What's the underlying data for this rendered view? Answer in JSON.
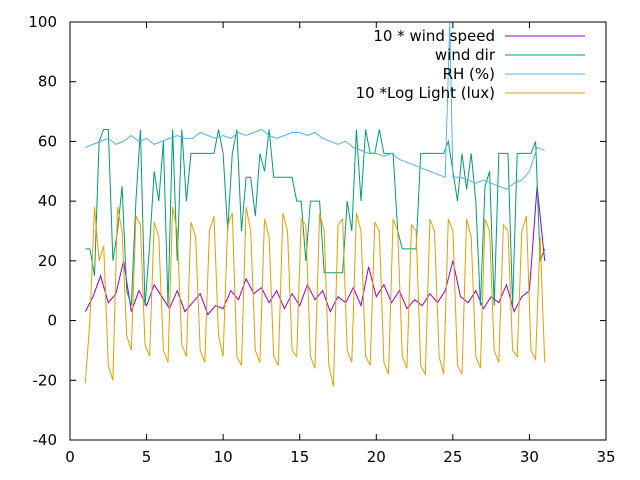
{
  "chart_data": {
    "type": "line",
    "xlim": [
      0,
      35
    ],
    "ylim": [
      -40,
      100
    ],
    "x_ticks": [
      "0",
      "5",
      "10",
      "15",
      "20",
      "25",
      "30",
      "35"
    ],
    "y_ticks": [
      "-40",
      "-20",
      "0",
      "20",
      "40",
      "60",
      "80",
      "100"
    ],
    "grid": false,
    "legend_position": "top-right",
    "series": [
      {
        "name": "10 * wind speed",
        "color": "#9400d3",
        "x": [
          1.0,
          1.5,
          2.0,
          2.5,
          3.0,
          3.5,
          4.0,
          4.5,
          5.0,
          5.5,
          6.0,
          6.5,
          7.0,
          7.5,
          8.0,
          8.5,
          9.0,
          9.5,
          10.0,
          10.5,
          11.0,
          11.5,
          12.0,
          12.5,
          13.0,
          13.5,
          14.0,
          14.5,
          15.0,
          15.5,
          16.0,
          16.5,
          17.0,
          17.5,
          18.0,
          18.5,
          19.0,
          19.5,
          20.0,
          20.5,
          21.0,
          21.5,
          22.0,
          22.5,
          23.0,
          23.5,
          24.0,
          24.5,
          25.0,
          25.5,
          26.0,
          26.5,
          27.0,
          27.5,
          28.0,
          28.5,
          29.0,
          29.5,
          30.0,
          30.5,
          31.0
        ],
        "y": [
          3,
          8,
          15,
          6,
          9,
          20,
          3,
          10,
          5,
          12,
          8,
          4,
          10,
          3,
          6,
          9,
          2,
          5,
          4,
          10,
          7,
          14,
          9,
          11,
          6,
          10,
          4,
          9,
          5,
          12,
          7,
          10,
          3,
          8,
          6,
          11,
          5,
          18,
          8,
          12,
          6,
          10,
          4,
          7,
          5,
          9,
          6,
          10,
          20,
          8,
          6,
          10,
          4,
          8,
          6,
          12,
          3,
          8,
          10,
          45,
          20
        ]
      },
      {
        "name": "wind dir",
        "color": "#009e73",
        "x": [
          1.0,
          1.3,
          1.6,
          1.9,
          2.2,
          2.5,
          2.8,
          3.1,
          3.4,
          3.7,
          4.0,
          4.3,
          4.6,
          4.9,
          5.2,
          5.5,
          5.8,
          6.1,
          6.4,
          6.7,
          7.0,
          7.3,
          7.6,
          7.9,
          8.2,
          8.5,
          8.8,
          9.1,
          9.4,
          9.7,
          10.0,
          10.3,
          10.6,
          10.9,
          11.2,
          11.5,
          11.8,
          12.1,
          12.4,
          12.7,
          13.0,
          13.3,
          13.6,
          13.9,
          14.2,
          14.5,
          14.8,
          15.1,
          15.4,
          15.7,
          16.0,
          16.3,
          16.6,
          16.9,
          17.2,
          17.5,
          17.8,
          18.1,
          18.4,
          18.7,
          19.0,
          19.3,
          19.6,
          19.9,
          20.2,
          20.5,
          20.8,
          21.1,
          21.4,
          21.7,
          22.0,
          22.3,
          22.6,
          22.9,
          23.2,
          23.5,
          23.8,
          24.1,
          24.4,
          24.7,
          25.0,
          25.3,
          25.6,
          25.9,
          26.2,
          26.5,
          26.8,
          27.1,
          27.4,
          27.7,
          28.0,
          28.3,
          28.6,
          28.9,
          29.2,
          29.5,
          29.8,
          30.1,
          30.4,
          30.7,
          31.0
        ],
        "y": [
          24,
          24,
          15,
          60,
          64,
          64,
          20,
          30,
          45,
          10,
          5,
          40,
          64,
          5,
          25,
          50,
          40,
          60,
          5,
          64,
          20,
          64,
          40,
          56,
          56,
          56,
          56,
          56,
          56,
          64,
          56,
          30,
          56,
          64,
          30,
          48,
          48,
          35,
          56,
          50,
          64,
          48,
          48,
          48,
          48,
          48,
          40,
          40,
          20,
          40,
          40,
          40,
          16,
          16,
          16,
          16,
          16,
          40,
          30,
          64,
          40,
          64,
          56,
          56,
          64,
          56,
          56,
          56,
          30,
          24,
          24,
          24,
          24,
          56,
          56,
          56,
          56,
          56,
          56,
          60,
          50,
          40,
          56,
          44,
          56,
          40,
          5,
          45,
          50,
          5,
          56,
          56,
          56,
          5,
          56,
          56,
          56,
          56,
          60,
          20,
          24
        ]
      },
      {
        "name": "RH (%)",
        "color": "#56b4e9",
        "x": [
          1.0,
          1.5,
          2.0,
          2.5,
          3.0,
          3.5,
          4.0,
          4.5,
          5.0,
          5.5,
          6.0,
          6.5,
          7.0,
          7.5,
          8.0,
          8.5,
          9.0,
          9.5,
          10.0,
          10.5,
          11.0,
          11.5,
          12.0,
          12.5,
          13.0,
          13.5,
          14.0,
          14.5,
          15.0,
          15.5,
          16.0,
          16.5,
          17.0,
          17.5,
          18.0,
          18.5,
          19.0,
          19.5,
          20.0,
          20.5,
          21.0,
          21.5,
          22.0,
          22.5,
          23.0,
          23.5,
          24.0,
          24.5,
          24.8,
          25.0,
          25.5,
          26.0,
          26.5,
          27.0,
          27.5,
          28.0,
          28.5,
          29.0,
          29.5,
          30.0,
          30.5,
          31.0
        ],
        "y": [
          58,
          59,
          60,
          61,
          59,
          60,
          62,
          60,
          61,
          59,
          60,
          61,
          62,
          61,
          61,
          63,
          62,
          61,
          62,
          61,
          63,
          62,
          63,
          64,
          62,
          61,
          62,
          63,
          63,
          62,
          63,
          61,
          60,
          59,
          60,
          58,
          57,
          56,
          56,
          55,
          56,
          54,
          53,
          52,
          51,
          50,
          49,
          48,
          100,
          48,
          48,
          47,
          46,
          47,
          46,
          45,
          44,
          46,
          47,
          50,
          58,
          57
        ]
      },
      {
        "name": "10 *Log Light (lux)",
        "color": "#e69f00",
        "x": [
          1.0,
          1.3,
          1.6,
          1.9,
          2.2,
          2.5,
          2.8,
          3.1,
          3.4,
          3.7,
          4.0,
          4.3,
          4.6,
          4.9,
          5.2,
          5.5,
          5.8,
          6.1,
          6.4,
          6.7,
          7.0,
          7.3,
          7.6,
          7.9,
          8.2,
          8.5,
          8.8,
          9.1,
          9.4,
          9.7,
          10.0,
          10.3,
          10.6,
          10.9,
          11.2,
          11.5,
          11.8,
          12.1,
          12.4,
          12.7,
          13.0,
          13.3,
          13.6,
          13.9,
          14.2,
          14.5,
          14.8,
          15.1,
          15.4,
          15.7,
          16.0,
          16.3,
          16.6,
          16.9,
          17.2,
          17.5,
          17.8,
          18.1,
          18.4,
          18.7,
          19.0,
          19.3,
          19.6,
          19.9,
          20.2,
          20.5,
          20.8,
          21.1,
          21.4,
          21.7,
          22.0,
          22.3,
          22.6,
          22.9,
          23.2,
          23.5,
          23.8,
          24.1,
          24.4,
          24.7,
          25.0,
          25.3,
          25.6,
          25.9,
          26.2,
          26.5,
          26.8,
          27.1,
          27.4,
          27.7,
          28.0,
          28.3,
          28.6,
          28.9,
          29.2,
          29.5,
          29.8,
          30.1,
          30.4,
          30.7,
          31.0
        ],
        "y": [
          -21,
          0,
          38,
          20,
          25,
          -15,
          -20,
          38,
          30,
          -5,
          -10,
          35,
          32,
          -8,
          -12,
          33,
          28,
          -10,
          -14,
          38,
          30,
          -8,
          -12,
          33,
          28,
          -10,
          -14,
          30,
          35,
          -5,
          -12,
          32,
          36,
          -12,
          -15,
          38,
          30,
          -10,
          -14,
          34,
          28,
          -12,
          -15,
          36,
          30,
          -10,
          -12,
          34,
          32,
          -12,
          -16,
          36,
          30,
          -15,
          -22,
          32,
          34,
          -10,
          -14,
          36,
          30,
          -12,
          -15,
          33,
          30,
          -14,
          -18,
          34,
          30,
          -12,
          -16,
          32,
          30,
          -15,
          -18,
          34,
          30,
          -12,
          -18,
          34,
          30,
          -15,
          -18,
          34,
          28,
          -12,
          -16,
          34,
          30,
          -10,
          -14,
          32,
          30,
          -10,
          -12,
          30,
          35,
          -10,
          -13,
          28,
          -14
        ]
      }
    ]
  }
}
